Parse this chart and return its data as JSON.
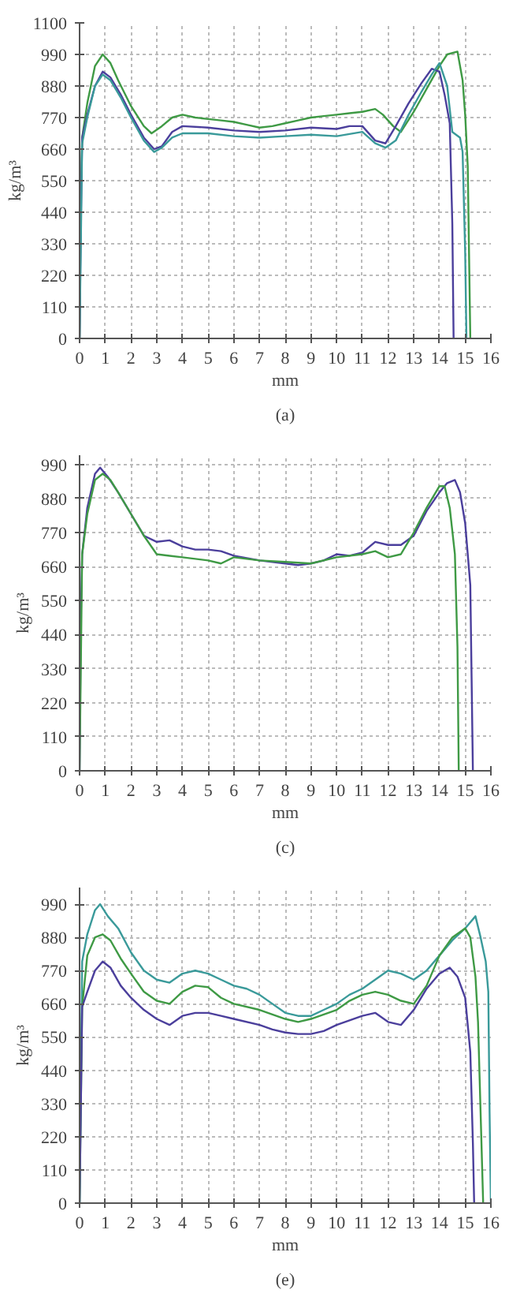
{
  "chart_data": [
    {
      "type": "line",
      "xlabel": "mm",
      "ylabel": "kg/m³",
      "annotations": [
        "(a)"
      ],
      "xlim": [
        0,
        16
      ],
      "ylim": [
        0,
        1100
      ],
      "xticks": [
        0,
        1,
        2,
        3,
        4,
        5,
        6,
        7,
        8,
        9,
        10,
        11,
        12,
        13,
        14,
        15,
        16
      ],
      "yticks": [
        0,
        110,
        220,
        330,
        440,
        550,
        660,
        770,
        880,
        990,
        1100
      ],
      "grid": true,
      "marker": "none",
      "line_style": "solid",
      "series": [
        {
          "color": "#3f9a45",
          "x": [
            0,
            0.05,
            0.1,
            0.3,
            0.6,
            0.9,
            1.2,
            1.5,
            2,
            2.5,
            2.8,
            3.2,
            3.6,
            4,
            4.5,
            5,
            5.5,
            6,
            6.5,
            7,
            7.5,
            8,
            8.5,
            9,
            9.5,
            10,
            10.5,
            11,
            11.5,
            11.8,
            12.2,
            12.5,
            13,
            13.5,
            14,
            14.3,
            14.7,
            14.9,
            15,
            15.1,
            15.15,
            15.2
          ],
          "values": [
            0,
            500,
            700,
            820,
            950,
            990,
            960,
            900,
            810,
            740,
            715,
            740,
            770,
            780,
            770,
            765,
            760,
            755,
            745,
            735,
            740,
            750,
            760,
            770,
            775,
            780,
            785,
            790,
            800,
            780,
            740,
            720,
            790,
            870,
            950,
            990,
            1000,
            900,
            780,
            600,
            300,
            0
          ]
        },
        {
          "color": "#4b3f9c",
          "x": [
            0,
            0.05,
            0.1,
            0.3,
            0.6,
            0.9,
            1.2,
            1.6,
            2,
            2.5,
            2.9,
            3.2,
            3.6,
            4,
            5,
            6,
            7,
            8,
            9,
            10,
            10.5,
            11,
            11.5,
            11.9,
            12.3,
            12.8,
            13.3,
            13.7,
            14,
            14.2,
            14.4,
            14.5,
            14.55
          ],
          "values": [
            0,
            400,
            700,
            780,
            880,
            930,
            910,
            850,
            780,
            700,
            660,
            670,
            720,
            740,
            735,
            725,
            720,
            725,
            735,
            730,
            740,
            740,
            690,
            680,
            740,
            820,
            890,
            940,
            930,
            850,
            750,
            400,
            0
          ]
        },
        {
          "color": "#3a9a9a",
          "x": [
            0,
            0.1,
            0.3,
            0.6,
            0.9,
            1.2,
            1.6,
            2,
            2.5,
            2.9,
            3.2,
            3.6,
            4,
            5,
            6,
            7,
            8,
            9,
            10,
            11,
            11.5,
            11.9,
            12.3,
            12.8,
            13.3,
            13.7,
            14,
            14.3,
            14.5,
            14.8,
            14.9,
            15,
            15.05
          ],
          "values": [
            0,
            680,
            770,
            880,
            920,
            900,
            840,
            770,
            690,
            650,
            665,
            700,
            715,
            715,
            705,
            700,
            705,
            710,
            705,
            720,
            680,
            665,
            690,
            780,
            860,
            920,
            960,
            880,
            720,
            700,
            650,
            300,
            0
          ]
        }
      ]
    },
    {
      "type": "line",
      "xlabel": "mm",
      "ylabel": "kg/m³",
      "annotations": [
        "(c)"
      ],
      "xlim": [
        0,
        16
      ],
      "ylim": [
        0,
        1020
      ],
      "xticks": [
        0,
        1,
        2,
        3,
        4,
        5,
        6,
        7,
        8,
        9,
        10,
        11,
        12,
        13,
        14,
        15,
        16
      ],
      "yticks": [
        0,
        110,
        220,
        330,
        440,
        550,
        660,
        770,
        880,
        990
      ],
      "grid": true,
      "marker": "none",
      "line_style": "solid",
      "series": [
        {
          "color": "#4b3f9c",
          "x": [
            0,
            0.05,
            0.1,
            0.3,
            0.6,
            0.8,
            1.1,
            1.5,
            2,
            2.5,
            3,
            3.5,
            4,
            4.5,
            5,
            5.5,
            6,
            7,
            8,
            8.5,
            9,
            9.5,
            10,
            10.5,
            11,
            11.5,
            12,
            12.5,
            13,
            13.5,
            14,
            14.3,
            14.6,
            14.8,
            15,
            15.2,
            15.25,
            15.3
          ],
          "values": [
            0,
            500,
            700,
            850,
            960,
            980,
            950,
            900,
            830,
            760,
            740,
            745,
            725,
            715,
            715,
            710,
            695,
            680,
            670,
            665,
            670,
            680,
            700,
            695,
            705,
            740,
            730,
            730,
            760,
            840,
            900,
            930,
            940,
            900,
            800,
            600,
            300,
            0
          ]
        },
        {
          "color": "#3f9a45",
          "x": [
            0,
            0.1,
            0.3,
            0.6,
            0.9,
            1.2,
            1.5,
            2,
            2.5,
            3,
            3.5,
            4,
            5,
            5.5,
            6,
            7,
            8,
            9,
            10,
            11,
            11.5,
            12,
            12.5,
            13,
            13.5,
            14,
            14.2,
            14.4,
            14.6,
            14.7,
            14.75
          ],
          "values": [
            0,
            700,
            830,
            940,
            960,
            940,
            900,
            830,
            760,
            700,
            695,
            690,
            680,
            670,
            690,
            680,
            675,
            670,
            690,
            700,
            710,
            690,
            700,
            770,
            850,
            920,
            920,
            850,
            700,
            400,
            0
          ]
        }
      ]
    },
    {
      "type": "line",
      "xlabel": "mm",
      "ylabel": "kg/m³",
      "annotations": [
        "(e)"
      ],
      "xlim": [
        0,
        16
      ],
      "ylim": [
        0,
        1045
      ],
      "xticks": [
        0,
        1,
        2,
        3,
        4,
        5,
        6,
        7,
        8,
        9,
        10,
        11,
        12,
        13,
        14,
        15,
        16
      ],
      "yticks": [
        0,
        110,
        220,
        330,
        440,
        550,
        660,
        770,
        880,
        990
      ],
      "grid": true,
      "marker": "none",
      "line_style": "solid",
      "series": [
        {
          "color": "#3a9a9a",
          "x": [
            0,
            0.1,
            0.3,
            0.6,
            0.8,
            1.1,
            1.5,
            2,
            2.5,
            3,
            3.5,
            4,
            4.5,
            5,
            5.5,
            6,
            6.5,
            7,
            7.5,
            8,
            8.5,
            9,
            9.5,
            10,
            10.5,
            11,
            11.5,
            12,
            12.5,
            13,
            13.5,
            14,
            14.5,
            15,
            15.4,
            15.6,
            15.8,
            15.9,
            15.95,
            16
          ],
          "values": [
            0,
            800,
            890,
            970,
            990,
            950,
            910,
            830,
            770,
            740,
            730,
            760,
            770,
            760,
            740,
            720,
            710,
            690,
            660,
            630,
            620,
            620,
            640,
            660,
            690,
            710,
            740,
            770,
            760,
            740,
            770,
            820,
            870,
            910,
            950,
            880,
            800,
            700,
            300,
            0
          ]
        },
        {
          "color": "#3f9a45",
          "x": [
            0,
            0.1,
            0.3,
            0.6,
            0.9,
            1.2,
            1.6,
            2,
            2.5,
            3,
            3.5,
            4,
            4.5,
            5,
            5.5,
            6,
            7,
            8,
            8.5,
            9,
            10,
            10.5,
            11,
            11.5,
            12,
            12.5,
            13,
            13.5,
            14,
            14.5,
            15,
            15.2,
            15.4,
            15.5,
            15.6,
            15.7
          ],
          "values": [
            0,
            650,
            820,
            880,
            890,
            870,
            810,
            760,
            700,
            670,
            660,
            700,
            720,
            715,
            680,
            660,
            640,
            610,
            600,
            610,
            640,
            670,
            690,
            700,
            690,
            670,
            660,
            720,
            820,
            880,
            910,
            880,
            750,
            600,
            300,
            0
          ]
        },
        {
          "color": "#4b3f9c",
          "x": [
            0,
            0.1,
            0.3,
            0.6,
            0.9,
            1.2,
            1.6,
            2,
            2.5,
            3,
            3.5,
            4,
            4.5,
            5,
            5.5,
            6,
            7,
            7.5,
            8,
            8.5,
            9,
            9.5,
            10,
            11,
            11.5,
            12,
            12.5,
            13,
            13.5,
            14,
            14.4,
            14.7,
            15,
            15.2,
            15.3,
            15.35
          ],
          "values": [
            0,
            650,
            700,
            770,
            800,
            780,
            720,
            680,
            640,
            610,
            590,
            620,
            630,
            630,
            620,
            610,
            590,
            575,
            565,
            560,
            560,
            570,
            590,
            620,
            630,
            600,
            590,
            640,
            710,
            760,
            780,
            750,
            680,
            500,
            200,
            0
          ]
        }
      ]
    }
  ]
}
